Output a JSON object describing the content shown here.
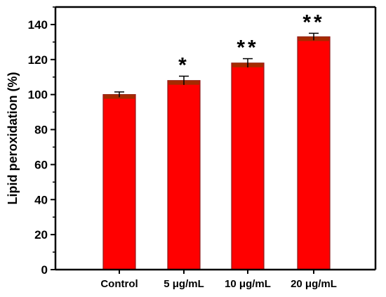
{
  "chart_data": {
    "type": "bar",
    "title": "",
    "xlabel": "",
    "ylabel": "Lipid peroxidation (%)",
    "categories": [
      "Control",
      "5 μg/mL",
      "10 μg/mL",
      "20 μg/mL"
    ],
    "values": [
      100,
      108,
      118,
      133
    ],
    "errors": [
      1.5,
      2.5,
      2.5,
      2.0
    ],
    "significance": [
      "",
      "*",
      "**",
      "**"
    ],
    "ylim": [
      0,
      150
    ],
    "yticks": [
      "0",
      "20",
      "40",
      "60",
      "80",
      "100",
      "120",
      "140"
    ],
    "grid": false,
    "legend": "none",
    "colors": {
      "bar_fill": "#ff0000",
      "bar_edge": "#8b1a1a",
      "bar_cap": "#a52a00",
      "axis": "#000000"
    }
  }
}
